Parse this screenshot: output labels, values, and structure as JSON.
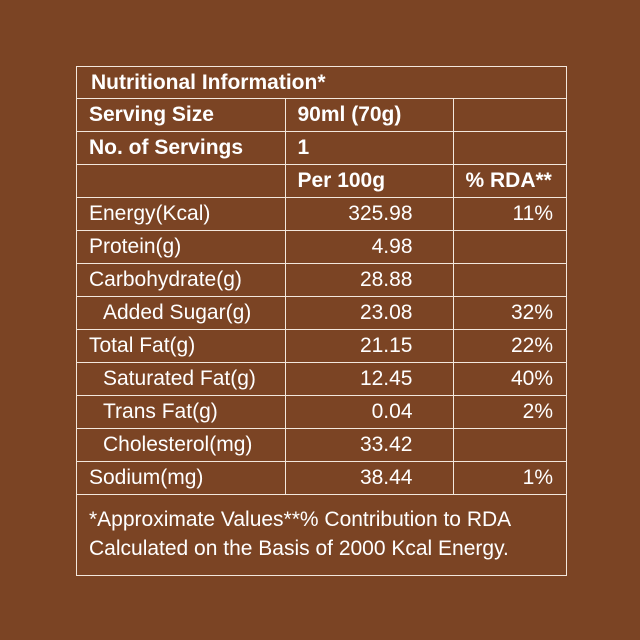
{
  "title": "Nutritional Information*",
  "serving_size": {
    "label": "Serving Size",
    "value": "90ml (70g)"
  },
  "servings": {
    "label": "No. of Servings",
    "value": "1"
  },
  "columns": {
    "per100": "Per 100g",
    "rda": "% RDA**"
  },
  "rows": [
    {
      "label": "Energy(Kcal)",
      "per100": "325.98",
      "rda": "11%"
    },
    {
      "label": "Protein(g)",
      "per100": "4.98",
      "rda": ""
    },
    {
      "label": "Carbohydrate(g)",
      "per100": "28.88",
      "rda": ""
    },
    {
      "label": "Added Sugar(g)",
      "per100": "23.08",
      "rda": "32%"
    },
    {
      "label": "Total Fat(g)",
      "per100": "21.15",
      "rda": "22%"
    },
    {
      "label": "Saturated Fat(g)",
      "per100": "12.45",
      "rda": "40%"
    },
    {
      "label": "Trans Fat(g)",
      "per100": "0.04",
      "rda": "2%"
    },
    {
      "label": "Cholesterol(mg)",
      "per100": "33.42",
      "rda": ""
    },
    {
      "label": "Sodium(mg)",
      "per100": "38.44",
      "rda": "1%"
    }
  ],
  "footnote": {
    "line1": "*Approximate Values**% Contribution to RDA",
    "line2": "Calculated on the Basis of 2000 Kcal Energy."
  },
  "colors": {
    "background": "#7b4424",
    "text": "#ffffff",
    "border": "#f3e7dc"
  }
}
